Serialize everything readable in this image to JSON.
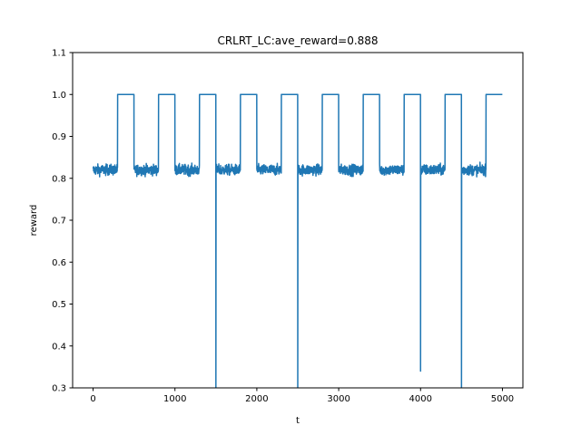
{
  "chart_data": {
    "type": "line",
    "title": "CRLRT_LC:ave_reward=0.888",
    "xlabel": "t",
    "ylabel": "reward",
    "xlim": [
      -250,
      5250
    ],
    "ylim": [
      0.3,
      1.1
    ],
    "xticks": [
      0,
      1000,
      2000,
      3000,
      4000,
      5000
    ],
    "yticks": [
      0.3,
      0.4,
      0.5,
      0.6,
      0.7,
      0.8,
      0.9,
      1.0,
      1.1
    ],
    "xtick_labels": [
      "0",
      "1000",
      "2000",
      "3000",
      "4000",
      "5000"
    ],
    "ytick_labels": [
      "0.3",
      "0.4",
      "0.5",
      "0.6",
      "0.7",
      "0.8",
      "0.9",
      "1.0",
      "1.1"
    ],
    "grid": false,
    "line_color": "#1f77b4",
    "series": [
      {
        "noise_center": 0.82,
        "segments": [
          {
            "start": 0,
            "end": 300,
            "phase": "noisy"
          },
          {
            "start": 300,
            "end": 500,
            "phase": "flat",
            "value": 1.0
          },
          {
            "start": 500,
            "end": 800,
            "phase": "noisy"
          },
          {
            "start": 800,
            "end": 1000,
            "phase": "flat",
            "value": 1.0
          },
          {
            "start": 1000,
            "end": 1300,
            "phase": "noisy"
          },
          {
            "start": 1300,
            "end": 1500,
            "phase": "flat",
            "value": 1.0
          },
          {
            "start": 1500,
            "end": 1800,
            "phase": "noisy"
          },
          {
            "start": 1800,
            "end": 2000,
            "phase": "flat",
            "value": 1.0
          },
          {
            "start": 2000,
            "end": 2300,
            "phase": "noisy"
          },
          {
            "start": 2300,
            "end": 2500,
            "phase": "flat",
            "value": 1.0
          },
          {
            "start": 2500,
            "end": 2800,
            "phase": "noisy"
          },
          {
            "start": 2800,
            "end": 3000,
            "phase": "flat",
            "value": 1.0
          },
          {
            "start": 3000,
            "end": 3300,
            "phase": "noisy"
          },
          {
            "start": 3300,
            "end": 3500,
            "phase": "flat",
            "value": 1.0
          },
          {
            "start": 3500,
            "end": 3800,
            "phase": "noisy"
          },
          {
            "start": 3800,
            "end": 4000,
            "phase": "flat",
            "value": 1.0
          },
          {
            "start": 4000,
            "end": 4300,
            "phase": "noisy"
          },
          {
            "start": 4300,
            "end": 4500,
            "phase": "flat",
            "value": 1.0
          },
          {
            "start": 4500,
            "end": 4800,
            "phase": "noisy"
          },
          {
            "start": 4800,
            "end": 5000,
            "phase": "flat",
            "value": 1.0
          }
        ],
        "dips": [
          {
            "x": 1500,
            "y": 0.3
          },
          {
            "x": 2500,
            "y": 0.3
          },
          {
            "x": 4000,
            "y": 0.34
          },
          {
            "x": 4500,
            "y": 0.3
          }
        ]
      }
    ]
  }
}
